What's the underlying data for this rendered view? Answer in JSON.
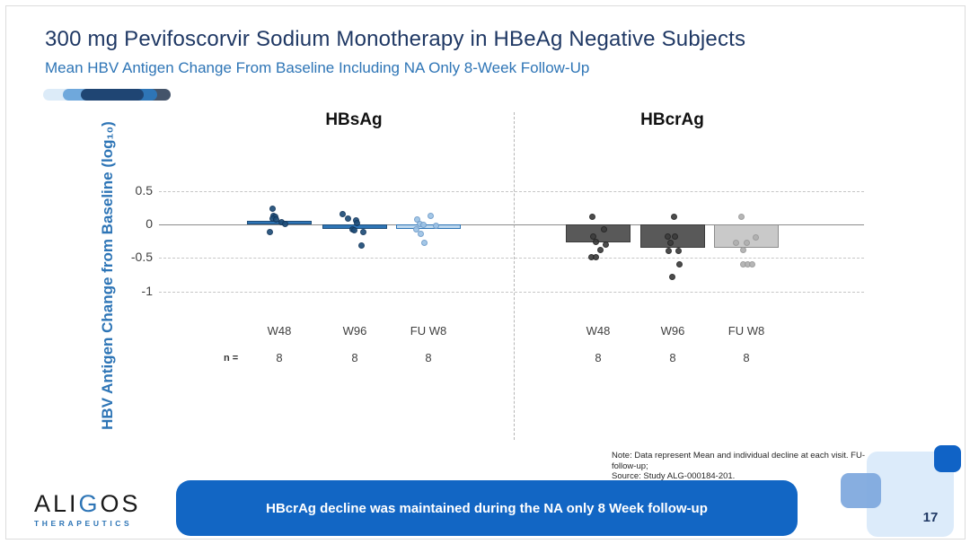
{
  "slide": {
    "title": "300 mg Pevifoscorvir Sodium Monotherapy in HBeAg Negative Subjects",
    "subtitle": "Mean HBV Antigen Change From Baseline Including NA Only 8-Week Follow-Up",
    "note_line1": "Note: Data represent Mean and individual decline at each visit. FU-follow-up;",
    "note_line2": "Source: Study ALG-000184-201.",
    "banner_text": "HBcrAg decline was maintained during the NA only 8 Week follow-up",
    "page_number": "17",
    "logo": {
      "name_pre": "ALI",
      "name_g": "G",
      "name_post": "OS",
      "sub": "THERAPEUTICS"
    },
    "accent_colors": [
      "#dcebf8",
      "#6fa8dc",
      "#44546a",
      "#2e75b6",
      "#1f4573"
    ],
    "colors": {
      "title": "#1f3864",
      "subtitle_blue": "#2e75b6",
      "banner_blue": "#1266c4",
      "decor_light": "#dcebfa",
      "decor_mid": "#7da7dd",
      "decor_dark": "#1063c6"
    }
  },
  "chart_data": {
    "type": "bar",
    "title": "",
    "ylabel": "HBV Antigen Change from Baseline (log₁₀)",
    "ylim": [
      -1.25,
      0.75
    ],
    "yticks": [
      {
        "label": "0.5",
        "v": 0.5
      },
      {
        "label": "0",
        "v": 0
      },
      {
        "label": "-0.5",
        "v": -0.5
      },
      {
        "label": "-1",
        "v": -1
      }
    ],
    "dashed_gridlines": [
      0.5,
      -0.5,
      -1
    ],
    "zero_line": 0,
    "n_label": "n =",
    "legend_position": "none",
    "grid": true,
    "panels": [
      {
        "title": "HBsAg",
        "categories": [
          "W48",
          "W96",
          "FU W8"
        ],
        "n": [
          "8",
          "8",
          "8"
        ],
        "bar_values": [
          0.06,
          -0.07,
          -0.07
        ],
        "bar_fill": [
          "#2e75b6",
          "#2e75b6",
          "#bdd7ee"
        ],
        "bar_stroke": [
          "#1f4e79",
          "#1f4e79",
          "#2e75b6"
        ],
        "dot_fill": [
          "#1f4e79",
          "#1f4e79",
          "#9dc3e6"
        ],
        "dot_stroke": [
          "#12365c",
          "#12365c",
          "#6f9cc9"
        ],
        "points": [
          [
            0.24,
            0.13,
            0.11,
            0.09,
            0.08,
            0.04,
            0.01,
            -0.11
          ],
          [
            0.15,
            0.09,
            0.06,
            0.02,
            -0.07,
            -0.09,
            -0.11,
            -0.31
          ],
          [
            0.13,
            0.08,
            0.01,
            0.0,
            -0.02,
            -0.07,
            -0.14,
            -0.28
          ]
        ],
        "jitter": [
          [
            -8,
            -7,
            -5,
            -8,
            -4,
            2,
            6,
            -11
          ],
          [
            -14,
            -8,
            1,
            2,
            -3,
            -1,
            9,
            7
          ],
          [
            2,
            -13,
            -10,
            -6,
            8,
            -14,
            -9,
            -5
          ]
        ]
      },
      {
        "title": "HBcrAg",
        "categories": [
          "W48",
          "W96",
          "FU W8"
        ],
        "n": [
          "8",
          "8",
          "8"
        ],
        "bar_values": [
          -0.27,
          -0.35,
          -0.35
        ],
        "bar_fill": [
          "#595959",
          "#595959",
          "#c9c9c9"
        ],
        "bar_stroke": [
          "#3b3b3b",
          "#3b3b3b",
          "#8c8c8c"
        ],
        "dot_fill": [
          "#3d3d3d",
          "#3d3d3d",
          "#b0b0b0"
        ],
        "dot_stroke": [
          "#262626",
          "#262626",
          "#999999"
        ],
        "points": [
          [
            0.12,
            -0.08,
            -0.18,
            -0.26,
            -0.3,
            -0.38,
            -0.49,
            -0.49
          ],
          [
            0.12,
            -0.18,
            -0.18,
            -0.28,
            -0.39,
            -0.39,
            -0.59,
            -0.79
          ],
          [
            0.12,
            -0.19,
            -0.28,
            -0.28,
            -0.38,
            -0.59,
            -0.59,
            -0.59
          ]
        ],
        "jitter": [
          [
            -7,
            6,
            -6,
            -3,
            8,
            2,
            -8,
            -3
          ],
          [
            1,
            -6,
            2,
            -3,
            -5,
            6,
            7,
            -1
          ],
          [
            -6,
            10,
            -12,
            0,
            -4,
            -4,
            1,
            6
          ]
        ]
      }
    ]
  }
}
